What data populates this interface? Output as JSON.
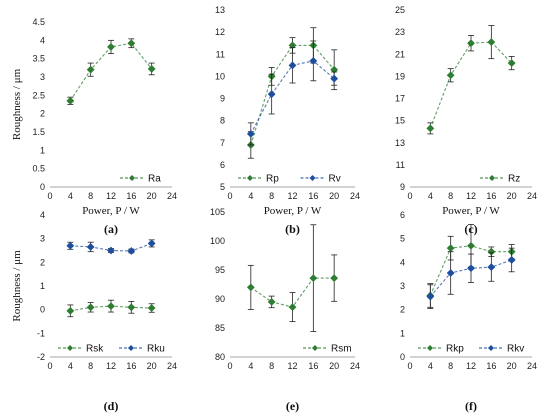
{
  "chart_data": [
    {
      "type": "line",
      "panel_label": "(a)",
      "xlabel": "Power, P / W",
      "ylabel": "Roughness / μm",
      "xlim": [
        0,
        24
      ],
      "xticks": [
        0,
        4,
        8,
        12,
        16,
        20,
        24
      ],
      "ylim": [
        0,
        4.5
      ],
      "yticks": [
        0,
        0.5,
        1,
        1.5,
        2,
        2.5,
        3,
        3.5,
        4,
        4.5
      ],
      "legend_position": "bottom-right",
      "x": [
        4,
        8,
        12,
        16,
        20
      ],
      "series": [
        {
          "name": "Ra",
          "values": [
            2.35,
            3.2,
            3.82,
            3.92,
            3.22
          ],
          "error": [
            0.1,
            0.18,
            0.18,
            0.12,
            0.16
          ],
          "color": "#2e7d32",
          "marker": "diamond"
        }
      ]
    },
    {
      "type": "line",
      "panel_label": "(b)",
      "xlabel": "Power, P / W",
      "ylabel": "",
      "xlim": [
        0,
        24
      ],
      "xticks": [
        0,
        4,
        8,
        12,
        16,
        20,
        24
      ],
      "ylim": [
        5,
        13
      ],
      "yticks": [
        5,
        6,
        7,
        8,
        9,
        10,
        11,
        12,
        13
      ],
      "legend_position": "bottom",
      "x": [
        4,
        8,
        12,
        16,
        20
      ],
      "series": [
        {
          "name": "Rp",
          "values": [
            6.9,
            10.0,
            11.4,
            11.4,
            10.3
          ],
          "error": [
            0.6,
            0.4,
            0.35,
            0.8,
            0.9
          ],
          "color": "#2e7d32",
          "marker": "diamond"
        },
        {
          "name": "Rv",
          "values": [
            7.4,
            9.2,
            10.5,
            10.7,
            9.9
          ],
          "error": [
            0.5,
            0.9,
            0.8,
            0.9,
            0.3
          ],
          "color": "#1f4e9e",
          "marker": "diamond"
        }
      ]
    },
    {
      "type": "line",
      "panel_label": "(c)",
      "xlabel": "Power, P / W",
      "ylabel": "",
      "xlim": [
        0,
        24
      ],
      "xticks": [
        0,
        4,
        8,
        12,
        16,
        20,
        24
      ],
      "ylim": [
        9,
        25
      ],
      "yticks": [
        9,
        11,
        13,
        15,
        17,
        19,
        21,
        23,
        25
      ],
      "legend_position": "bottom-right",
      "x": [
        4,
        8,
        12,
        16,
        20
      ],
      "series": [
        {
          "name": "Rz",
          "values": [
            14.3,
            19.1,
            22.0,
            22.1,
            20.2
          ],
          "error": [
            0.5,
            0.6,
            0.7,
            1.5,
            0.6
          ],
          "color": "#2e7d32",
          "marker": "diamond"
        }
      ]
    },
    {
      "type": "line",
      "panel_label": "(d)",
      "xlabel": "",
      "ylabel": "Roughness / μm",
      "xlim": [
        0,
        24
      ],
      "xticks": [
        0,
        4,
        8,
        12,
        16,
        20,
        24
      ],
      "ylim": [
        -2,
        4
      ],
      "yticks": [
        -2,
        -1,
        0,
        1,
        2,
        3,
        4
      ],
      "legend_position": "bottom",
      "x": [
        4,
        8,
        12,
        16,
        20
      ],
      "series": [
        {
          "name": "Rsk",
          "values": [
            -0.05,
            0.1,
            0.15,
            0.1,
            0.07
          ],
          "error": [
            0.25,
            0.2,
            0.25,
            0.25,
            0.18
          ],
          "color": "#2e7d32",
          "marker": "diamond"
        },
        {
          "name": "Rku",
          "values": [
            2.7,
            2.65,
            2.5,
            2.48,
            2.8
          ],
          "error": [
            0.15,
            0.2,
            0.08,
            0.08,
            0.15
          ],
          "color": "#1f4e9e",
          "marker": "diamond"
        }
      ]
    },
    {
      "type": "line",
      "panel_label": "(e)",
      "xlabel": "",
      "ylabel": "",
      "xlim": [
        0,
        24
      ],
      "xticks": [
        0,
        4,
        8,
        12,
        16,
        20,
        24
      ],
      "ylim": [
        80,
        105
      ],
      "yticks": [
        80,
        85,
        90,
        95,
        100,
        105
      ],
      "legend_position": "bottom-right",
      "x": [
        4,
        8,
        12,
        16,
        20
      ],
      "series": [
        {
          "name": "Rsm",
          "values": [
            92.0,
            89.5,
            88.6,
            93.6,
            93.6
          ],
          "error": [
            3.8,
            1.0,
            2.5,
            9.2,
            4.0
          ],
          "color": "#2e7d32",
          "marker": "diamond"
        }
      ]
    },
    {
      "type": "line",
      "panel_label": "(f)",
      "xlabel": "",
      "ylabel": "",
      "xlim": [
        0,
        24
      ],
      "xticks": [
        0,
        4,
        8,
        12,
        16,
        20,
        24
      ],
      "ylim": [
        0,
        6
      ],
      "yticks": [
        0,
        1,
        2,
        3,
        4,
        5,
        6
      ],
      "legend_position": "bottom",
      "x": [
        4,
        8,
        12,
        16,
        20
      ],
      "series": [
        {
          "name": "Rkp",
          "values": [
            2.6,
            4.6,
            4.7,
            4.45,
            4.45
          ],
          "error": [
            0.5,
            0.5,
            0.9,
            0.2,
            0.3
          ],
          "color": "#2e7d32",
          "marker": "diamond"
        },
        {
          "name": "Rkv",
          "values": [
            2.55,
            3.55,
            3.75,
            3.8,
            4.1
          ],
          "error": [
            0.5,
            0.9,
            0.6,
            0.6,
            0.5
          ],
          "color": "#1f4e9e",
          "marker": "diamond"
        }
      ]
    }
  ]
}
